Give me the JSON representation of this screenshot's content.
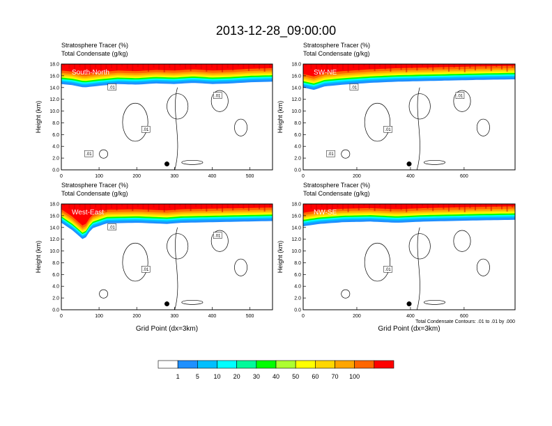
{
  "figure": {
    "title": "2013-12-28_09:00:00",
    "legend_labels": [
      "1",
      "5",
      "10",
      "20",
      "30",
      "40",
      "50",
      "60",
      "70",
      "100"
    ],
    "legend_colors": [
      "#ffffff",
      "#1e90ff",
      "#00bfff",
      "#00ffff",
      "#00fa9a",
      "#00ff00",
      "#adff2f",
      "#ffff00",
      "#ffd700",
      "#ffa500",
      "#ff6600",
      "#ff0000"
    ],
    "contour_info": "Total Condensate Contours: .01 to .01 by .000"
  },
  "chart_data": [
    {
      "type": "heatmap",
      "panel": "South-North",
      "title_line1": "Stratosphere Tracer   (%)",
      "title_line2": "Total Condensate   (g/kg)",
      "ylabel": "Height (km)",
      "xlabel": "",
      "ylim": [
        0,
        18
      ],
      "yticks": [
        "0.0",
        "2.0",
        "4.0",
        "6.0",
        "8.0",
        "10.0",
        "12.0",
        "14.0",
        "16.0",
        "18.0"
      ],
      "xlim": [
        0,
        560
      ],
      "xticks": [
        0,
        100,
        200,
        300,
        400,
        500
      ],
      "tracer_top_km": 18,
      "tracer_base_km": [
        [
          0,
          14.6
        ],
        [
          30,
          14.4
        ],
        [
          60,
          14.0
        ],
        [
          100,
          14.3
        ],
        [
          150,
          14.6
        ],
        [
          200,
          14.5
        ],
        [
          250,
          14.7
        ],
        [
          300,
          14.6
        ],
        [
          350,
          14.8
        ],
        [
          400,
          14.6
        ],
        [
          450,
          14.7
        ],
        [
          500,
          14.9
        ],
        [
          560,
          15.0
        ]
      ],
      "contour_labels": [
        ".01",
        ".01",
        ".01",
        ".01"
      ],
      "marker": {
        "x": 280,
        "y": 1.0
      }
    },
    {
      "type": "heatmap",
      "panel": "SW-NE",
      "title_line1": "Stratosphere Tracer   (%)",
      "title_line2": "Total Condensate   (g/kg)",
      "ylabel": "Height (km)",
      "xlabel": "",
      "ylim": [
        0,
        18
      ],
      "yticks": [
        "0.0",
        "2.0",
        "4.0",
        "6.0",
        "8.0",
        "10.0",
        "12.0",
        "14.0",
        "16.0",
        "18.0"
      ],
      "xlim": [
        0,
        790
      ],
      "xticks": [
        0,
        200,
        400,
        600
      ],
      "tracer_base_km": [
        [
          0,
          14.0
        ],
        [
          40,
          13.6
        ],
        [
          80,
          14.2
        ],
        [
          150,
          14.5
        ],
        [
          250,
          14.8
        ],
        [
          350,
          15.0
        ],
        [
          450,
          15.1
        ],
        [
          550,
          15.2
        ],
        [
          650,
          15.3
        ],
        [
          790,
          15.4
        ]
      ],
      "contour_labels": [
        ".01",
        ".01",
        ".01",
        ".01"
      ],
      "marker": {
        "x": 395,
        "y": 1.0
      }
    },
    {
      "type": "heatmap",
      "panel": "West-East",
      "title_line1": "Stratosphere Tracer   (%)",
      "title_line2": "Total Condensate   (g/kg)",
      "ylabel": "Height (km)",
      "xlabel": "Grid Point (dx=3km)",
      "ylim": [
        0,
        18
      ],
      "yticks": [
        "0.0",
        "2.0",
        "4.0",
        "6.0",
        "8.0",
        "10.0",
        "12.0",
        "14.0",
        "16.0",
        "18.0"
      ],
      "xlim": [
        0,
        560
      ],
      "xticks": [
        0,
        100,
        200,
        300,
        400,
        500
      ],
      "tracer_base_km": [
        [
          0,
          14.8
        ],
        [
          30,
          13.5
        ],
        [
          60,
          11.8
        ],
        [
          80,
          13.8
        ],
        [
          120,
          14.7
        ],
        [
          200,
          14.8
        ],
        [
          280,
          14.6
        ],
        [
          320,
          14.8
        ],
        [
          400,
          14.9
        ],
        [
          480,
          15.0
        ],
        [
          560,
          15.1
        ]
      ],
      "contour_labels": [
        ".01",
        ".01",
        ".01"
      ],
      "marker": {
        "x": 280,
        "y": 1.0
      }
    },
    {
      "type": "heatmap",
      "panel": "NW-SE",
      "title_line1": "Stratosphere Tracer   (%)",
      "title_line2": "Total Condensate   (g/kg)",
      "ylabel": "Height (km)",
      "xlabel": "Grid Point (dx=3km)",
      "ylim": [
        0,
        18
      ],
      "yticks": [
        "0.0",
        "2.0",
        "4.0",
        "6.0",
        "8.0",
        "10.0",
        "12.0",
        "14.0",
        "16.0",
        "18.0"
      ],
      "xlim": [
        0,
        790
      ],
      "xticks": [
        0,
        200,
        400,
        600
      ],
      "tracer_base_km": [
        [
          0,
          14.2
        ],
        [
          60,
          14.6
        ],
        [
          150,
          14.9
        ],
        [
          250,
          15.0
        ],
        [
          350,
          14.8
        ],
        [
          450,
          15.0
        ],
        [
          550,
          15.1
        ],
        [
          650,
          15.2
        ],
        [
          790,
          15.3
        ]
      ],
      "contour_labels": [
        ".01"
      ],
      "marker": {
        "x": 395,
        "y": 1.0
      }
    }
  ]
}
